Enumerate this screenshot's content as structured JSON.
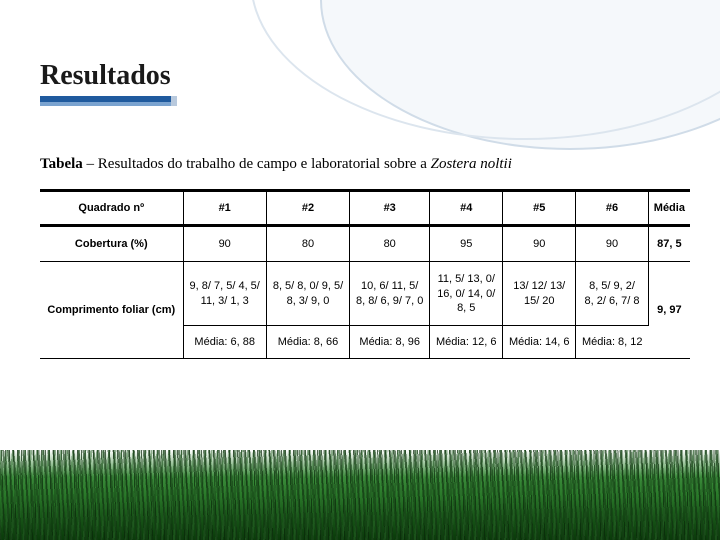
{
  "title": "Resultados",
  "caption_bold": "Tabela",
  "caption_text": " – Resultados do trabalho de campo e laboratorial sobre a ",
  "caption_italic": "Zostera noltii",
  "table": {
    "columns": [
      "Quadrado nº",
      "#1",
      "#2",
      "#3",
      "#4",
      "#5",
      "#6",
      "Média"
    ],
    "rows": [
      {
        "label": "Cobertura (%)",
        "cells": [
          "90",
          "80",
          "80",
          "95",
          "90",
          "90",
          "87, 5"
        ]
      },
      {
        "label": "Comprimento foliar (cm)",
        "compound": true,
        "line1": [
          "9, 8/ 7, 5/ 4, 5/",
          "8, 5/ 8, 0/ 9, 5/",
          "10, 6/ 11, 5/",
          "11, 5/ 13, 0/",
          "13/ 12/ 13/",
          "8, 5/ 9, 2/"
        ],
        "line2": [
          "11, 3/ 1, 3",
          "8, 3/ 9, 0",
          "8, 8/ 6, 9/ 7, 0",
          "16, 0/ 14, 0/",
          "15/ 20",
          "8, 2/ 6, 7/ 8"
        ],
        "line3": [
          "",
          "",
          "",
          "8, 5",
          "",
          ""
        ],
        "media_row": [
          "Média: 6, 88",
          "Média: 8, 66",
          "Média: 8, 96",
          "Média: 12, 6",
          "Média: 14, 6",
          "Média: 8, 12"
        ],
        "media_final": "9, 97"
      }
    ]
  },
  "colors": {
    "underline_primary": "#1f5a9e",
    "underline_secondary": "#7aa3d0",
    "text": "#000000",
    "border": "#000000"
  }
}
